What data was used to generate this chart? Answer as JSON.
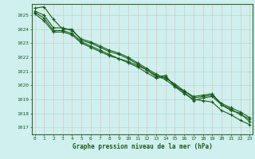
{
  "title": "Graphe pression niveau de la mer (hPa)",
  "hours": [
    0,
    1,
    2,
    3,
    4,
    5,
    6,
    7,
    8,
    9,
    10,
    11,
    12,
    13,
    14,
    15,
    16,
    17,
    18,
    19,
    20,
    21,
    22,
    23
  ],
  "ylim": [
    1016.5,
    1025.8
  ],
  "yticks": [
    1017,
    1018,
    1019,
    1020,
    1021,
    1022,
    1023,
    1024,
    1025
  ],
  "bg_color": "#cff0ee",
  "grid_color_h": "#b0d8d5",
  "grid_color_v": "#e8c0c0",
  "line_color": "#1a5c1a",
  "spine_color": "#336633",
  "lines": [
    [
      1025.5,
      1025.6,
      1024.7,
      1024.0,
      1024.0,
      1023.2,
      1023.0,
      1022.7,
      1022.4,
      1022.2,
      1021.9,
      1021.5,
      1021.1,
      1020.6,
      1020.7,
      1019.9,
      1019.6,
      1019.2,
      1019.3,
      1019.4,
      1018.6,
      1018.2,
      1018.0,
      1017.4
    ],
    [
      1025.2,
      1024.8,
      1023.9,
      1023.9,
      1023.7,
      1023.1,
      1022.8,
      1022.5,
      1022.2,
      1021.9,
      1021.6,
      1021.3,
      1020.9,
      1020.5,
      1020.6,
      1020.0,
      1019.5,
      1018.9,
      1019.1,
      1019.2,
      1018.6,
      1018.3,
      1017.9,
      1017.6
    ],
    [
      1025.1,
      1024.6,
      1023.8,
      1023.8,
      1023.6,
      1023.0,
      1022.7,
      1022.4,
      1022.1,
      1021.9,
      1021.7,
      1021.4,
      1021.1,
      1020.7,
      1020.4,
      1019.9,
      1019.4,
      1019.0,
      1018.9,
      1018.8,
      1018.2,
      1017.9,
      1017.5,
      1017.2
    ],
    [
      1025.3,
      1025.0,
      1024.1,
      1024.1,
      1023.9,
      1023.3,
      1023.1,
      1022.8,
      1022.5,
      1022.3,
      1022.0,
      1021.6,
      1021.2,
      1020.8,
      1020.5,
      1020.1,
      1019.6,
      1019.1,
      1019.2,
      1019.3,
      1018.7,
      1018.4,
      1018.1,
      1017.7
    ]
  ],
  "marker": "+",
  "markersize": 3,
  "linewidth": 0.8,
  "title_fontsize": 5.5,
  "tick_fontsize": 4.5
}
